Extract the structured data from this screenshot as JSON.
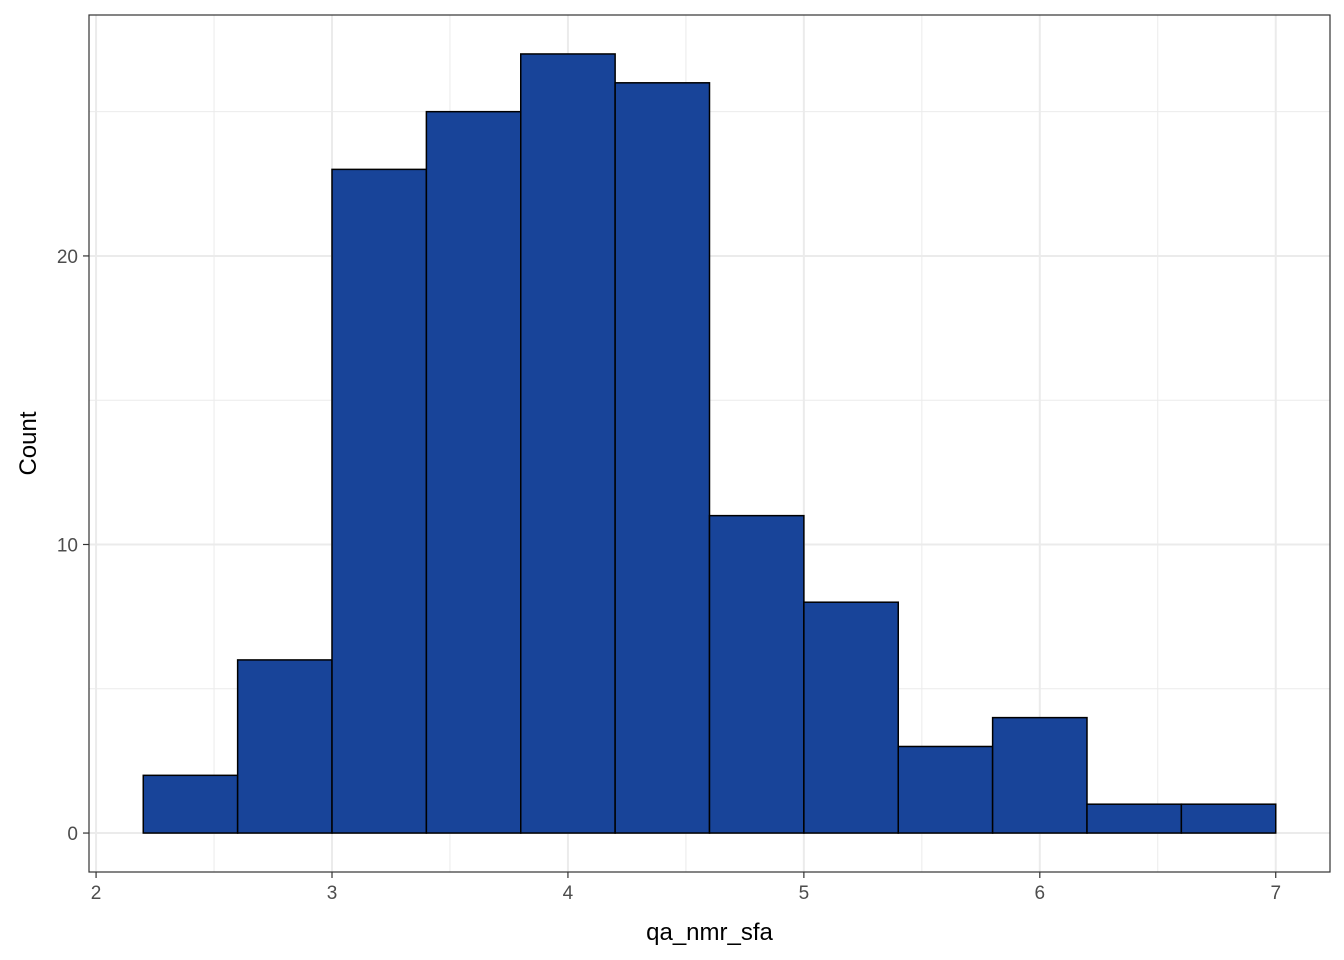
{
  "chart_data": {
    "type": "bar",
    "subtype": "histogram",
    "xlabel": "qa_nmr_sfa",
    "ylabel": "Count",
    "xlim": [
      1.97,
      7.23
    ],
    "ylim": [
      -1.35,
      28.35
    ],
    "x_ticks": [
      2,
      3,
      4,
      5,
      6,
      7
    ],
    "x_tick_labels": [
      "2",
      "3",
      "4",
      "5",
      "6",
      "7"
    ],
    "y_ticks": [
      0,
      10,
      20
    ],
    "y_tick_labels": [
      "0",
      "10",
      "20"
    ],
    "bin_width": 0.4,
    "bins": [
      {
        "x0": 2.2,
        "x1": 2.6,
        "count": 2
      },
      {
        "x0": 2.6,
        "x1": 3.0,
        "count": 6
      },
      {
        "x0": 3.0,
        "x1": 3.4,
        "count": 23
      },
      {
        "x0": 3.4,
        "x1": 3.8,
        "count": 25
      },
      {
        "x0": 3.8,
        "x1": 4.2,
        "count": 27
      },
      {
        "x0": 4.2,
        "x1": 4.6,
        "count": 26
      },
      {
        "x0": 4.6,
        "x1": 5.0,
        "count": 11
      },
      {
        "x0": 5.0,
        "x1": 5.4,
        "count": 8
      },
      {
        "x0": 5.4,
        "x1": 5.8,
        "count": 3
      },
      {
        "x0": 5.8,
        "x1": 6.2,
        "count": 4
      },
      {
        "x0": 6.2,
        "x1": 6.6,
        "count": 1
      },
      {
        "x0": 6.6,
        "x1": 7.0,
        "count": 1
      }
    ],
    "grid": true,
    "legend": "none",
    "colors": {
      "bar_fill": "#184499",
      "bar_outline": "#000000",
      "grid": "#ebebeb",
      "panel_border": "#333333",
      "background": "#ffffff"
    }
  }
}
